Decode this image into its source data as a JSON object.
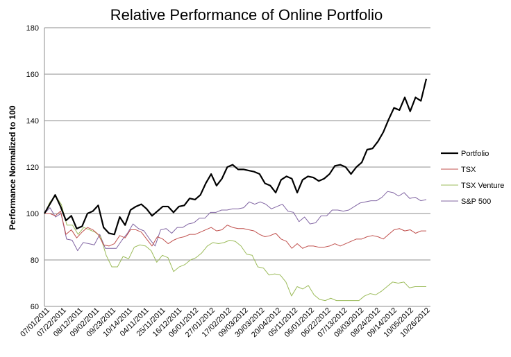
{
  "chart_data": {
    "type": "line",
    "title": "Relative Performance of Online Portfolio",
    "xlabel": "",
    "ylabel": "Performance Normalized to 100",
    "ylim": [
      60,
      180
    ],
    "yticks": [
      60,
      80,
      100,
      120,
      140,
      160,
      180
    ],
    "grid": true,
    "legend_position": "right",
    "x_tick_labels": [
      "07/01/2011",
      "07/22/2011",
      "08/12/2011",
      "09/02/2011",
      "09/23/2011",
      "10/14/2011",
      "04/11/2011",
      "25/11/2011",
      "16/12/2011",
      "06/01/2012",
      "27/01/2012",
      "17/02/2012",
      "09/03/2012",
      "30/03/2012",
      "20/04/2012",
      "05/11/2012",
      "06/01/2012",
      "06/22/2012",
      "07/13/2012",
      "08/03/2012",
      "08/24/2012",
      "09/14/2012",
      "10/05/2012",
      "10/26/2012"
    ],
    "series": [
      {
        "name": "Portfolio",
        "color": "#000000",
        "values": [
          100,
          104,
          108,
          103,
          97,
          99,
          93.5,
          94.5,
          100,
          101,
          103.5,
          94,
          91.5,
          91,
          98.5,
          95,
          101.5,
          103,
          104,
          102,
          99,
          101,
          103,
          103,
          100.5,
          103,
          103.5,
          106.5,
          106,
          108,
          113,
          117,
          112,
          115,
          120,
          121,
          119,
          119,
          118.5,
          118,
          117,
          113,
          112,
          109,
          114.5,
          116,
          115,
          109,
          114.5,
          116,
          115.5,
          114,
          115,
          117,
          120.5,
          121,
          120,
          117,
          120,
          122,
          127.5,
          128,
          131,
          135,
          140.5,
          145.5,
          144.5,
          150,
          144,
          150,
          148.5,
          158
        ]
      },
      {
        "name": "TSX",
        "color": "#c0504d",
        "values": [
          100,
          100,
          99,
          101,
          91,
          93,
          89.5,
          92,
          94,
          93,
          91,
          86.5,
          86,
          87,
          90.5,
          89.5,
          93,
          93,
          92,
          89,
          86,
          90,
          89,
          87,
          88.5,
          89.5,
          90,
          91,
          91,
          92,
          93,
          94,
          92.5,
          93,
          95,
          94,
          93.5,
          93.5,
          93,
          92.5,
          91,
          90,
          90.5,
          91.5,
          89,
          88,
          85,
          87,
          85,
          86,
          86,
          85.5,
          85.5,
          86,
          87,
          86,
          87,
          88,
          89,
          89,
          90,
          90.5,
          90,
          89,
          91,
          93,
          93.5,
          92.5,
          93,
          91.5,
          92.5,
          92.5
        ]
      },
      {
        "name": "TSX Venture",
        "color": "#9bbb59",
        "values": [
          100,
          105,
          107.5,
          104,
          95,
          95,
          91,
          94,
          93,
          92,
          90,
          82,
          77,
          77,
          81.5,
          80.5,
          85.5,
          86.5,
          86,
          84,
          79,
          82,
          81,
          75,
          77,
          78,
          80,
          81,
          83,
          86,
          87.5,
          87,
          87.5,
          88.5,
          88,
          86,
          82.5,
          82,
          77,
          76.5,
          73.5,
          74,
          73.5,
          70.5,
          64.5,
          68.5,
          67.5,
          69,
          65,
          63,
          62.5,
          63.5,
          62.5,
          62.5,
          62.5,
          62.5,
          62.5,
          64.5,
          65.5,
          65,
          66.5,
          68.5,
          70.5,
          70,
          70.5,
          68,
          68.5,
          68.5,
          68.5
        ]
      },
      {
        "name": "S&P 500",
        "color": "#8064a2",
        "values": [
          100,
          102.5,
          98.5,
          100,
          89,
          88.5,
          84,
          87.5,
          87,
          86.5,
          91,
          85,
          85,
          85,
          88.5,
          91.5,
          95.5,
          93.5,
          92.5,
          89,
          86,
          93,
          93.5,
          91.5,
          94,
          94,
          95.5,
          96,
          98,
          98,
          100.5,
          100.5,
          101.5,
          101.5,
          102,
          102,
          102.5,
          105,
          104,
          105,
          104,
          102,
          103,
          104,
          101,
          100.5,
          96.5,
          98.5,
          95.5,
          96,
          99,
          99,
          101.5,
          101.5,
          101,
          101.5,
          103,
          104.5,
          105,
          105.5,
          105.5,
          107,
          109.5,
          109,
          107.5,
          109,
          106.5,
          107,
          105.5,
          106
        ]
      }
    ]
  }
}
